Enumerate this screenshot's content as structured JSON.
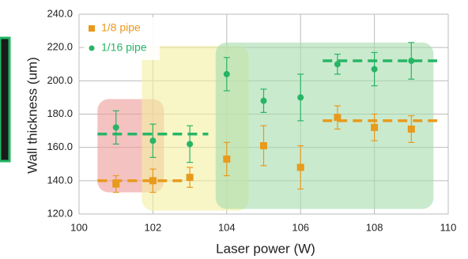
{
  "chart_data": {
    "type": "scatter",
    "xlabel": "Laser power (W)",
    "ylabel": "Wall thickness (um)",
    "xlim": [
      100,
      110
    ],
    "ylim": [
      120,
      240
    ],
    "xticks": [
      100,
      102,
      104,
      106,
      108,
      110
    ],
    "yticks": [
      {
        "value": 120,
        "label": "120.0"
      },
      {
        "value": 140,
        "label": "140.0"
      },
      {
        "value": 160,
        "label": "160.0"
      },
      {
        "value": 180,
        "label": "180.0"
      },
      {
        "value": 200,
        "label": "200.0"
      },
      {
        "value": 220,
        "label": "220.0"
      },
      {
        "value": 240,
        "label": "240.0"
      }
    ],
    "grid": true,
    "legend": "upper left",
    "series": [
      {
        "name": "1/8 pipe",
        "color": "#e89a1c",
        "marker": "square",
        "x": [
          101,
          102,
          103,
          104,
          105,
          106,
          107,
          108,
          109
        ],
        "values": [
          138,
          140,
          142,
          153,
          161,
          148,
          178,
          172,
          171
        ],
        "errors": [
          5,
          7,
          6,
          10,
          12,
          13,
          7,
          8,
          8
        ]
      },
      {
        "name": "1/16 pipe",
        "color": "#27b565",
        "marker": "circle",
        "x": [
          101,
          102,
          103,
          104,
          105,
          106,
          107,
          108,
          109
        ],
        "values": [
          172,
          164,
          162,
          204,
          188,
          190,
          210,
          207,
          212
        ],
        "errors": [
          10,
          10,
          11,
          10,
          7,
          14,
          6,
          10,
          11
        ]
      }
    ],
    "mean_lines": [
      {
        "color": "#e89a1c",
        "y": 140,
        "x": [
          100.5,
          102.8
        ]
      },
      {
        "color": "#27b565",
        "y": 168,
        "x": [
          100.5,
          103.5
        ]
      },
      {
        "color": "#e89a1c",
        "y": 176,
        "x": [
          106.6,
          109.7
        ]
      },
      {
        "color": "#27b565",
        "y": 212,
        "x": [
          106.6,
          109.7
        ]
      }
    ],
    "regions": [
      {
        "color": "#ef9a9a",
        "x": [
          100.5,
          102.3
        ],
        "y": [
          133,
          189
        ]
      },
      {
        "color": "#f3f0a0",
        "x": [
          101.7,
          104.6
        ],
        "y": [
          122,
          221
        ]
      },
      {
        "color": "#a7dcae",
        "x": [
          103.7,
          109.6
        ],
        "y": [
          123,
          223
        ]
      }
    ]
  }
}
